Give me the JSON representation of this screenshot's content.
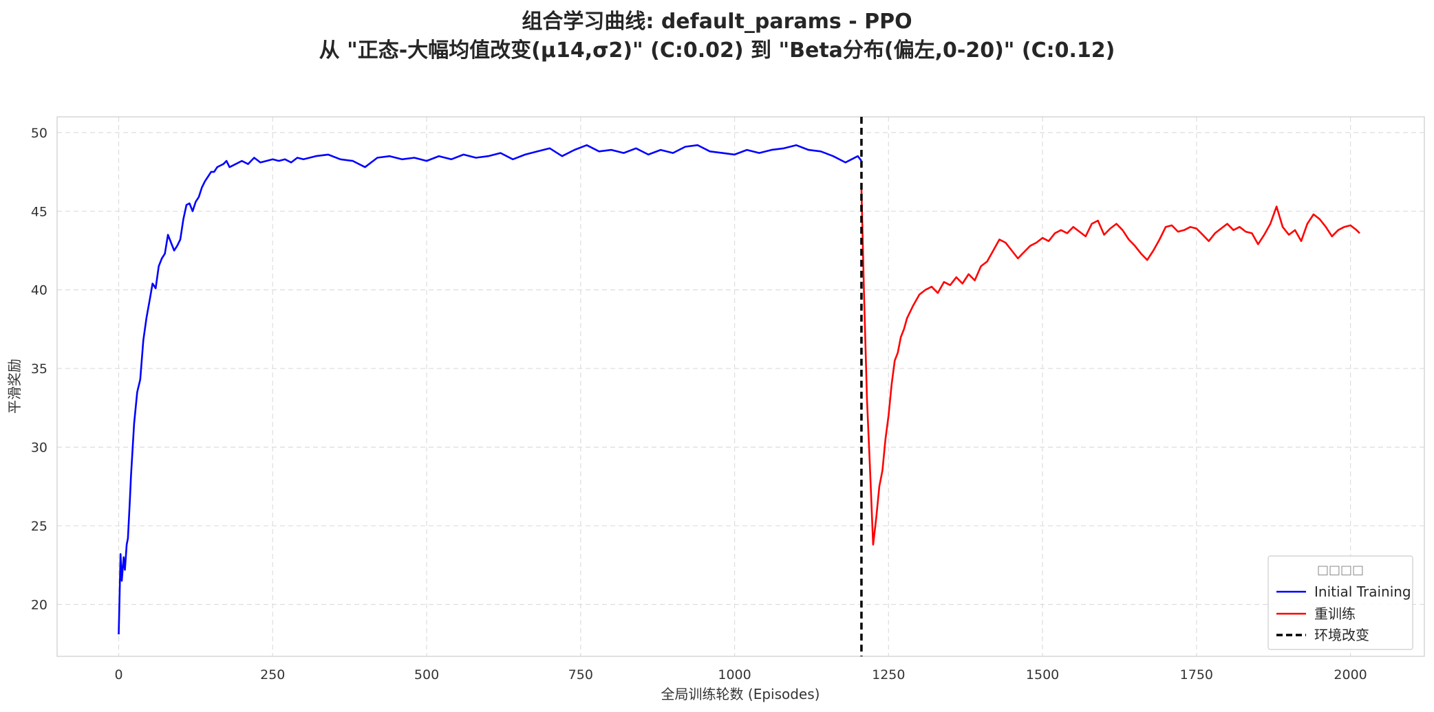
{
  "chart_data": {
    "type": "line",
    "title_line1": "组合学习曲线: default_params - PPO",
    "title_line2": "从 \"正态-大幅均值改变(μ14,σ2)\" (C:0.02) 到 \"Beta分布(偏左,0-20)\" (C:0.12)",
    "xlabel": "全局训练轮数 (Episodes)",
    "ylabel": "平滑奖励",
    "xlim": [
      -100,
      2120
    ],
    "ylim": [
      16.7,
      51.0
    ],
    "x_ticks": [
      0,
      250,
      500,
      750,
      1000,
      1250,
      1500,
      1750,
      2000
    ],
    "y_ticks": [
      20,
      25,
      30,
      35,
      40,
      45,
      50
    ],
    "grid": true,
    "legend": {
      "title": "□□□□",
      "placement": "bottom-right",
      "entries": [
        {
          "label": "Initial Training",
          "color": "#0000ff",
          "style": "solid"
        },
        {
          "label": "重训练",
          "color": "#ff0000",
          "style": "solid"
        },
        {
          "label": "环境改变",
          "color": "#000000",
          "style": "dashed"
        }
      ]
    },
    "vline": {
      "x": 1206,
      "color": "#000000",
      "style": "dashed"
    },
    "series": [
      {
        "name": "Initial Training",
        "color": "#0000ff",
        "x": [
          0,
          3,
          5,
          8,
          10,
          13,
          15,
          18,
          20,
          25,
          30,
          35,
          40,
          45,
          50,
          55,
          60,
          65,
          70,
          75,
          80,
          85,
          90,
          95,
          100,
          105,
          110,
          115,
          120,
          125,
          130,
          135,
          140,
          145,
          150,
          155,
          160,
          165,
          170,
          175,
          180,
          190,
          200,
          210,
          220,
          230,
          240,
          250,
          260,
          270,
          280,
          290,
          300,
          320,
          340,
          360,
          380,
          400,
          420,
          440,
          460,
          480,
          500,
          520,
          540,
          560,
          580,
          600,
          620,
          640,
          660,
          680,
          700,
          720,
          740,
          760,
          780,
          800,
          820,
          840,
          860,
          880,
          900,
          920,
          940,
          960,
          980,
          1000,
          1020,
          1040,
          1060,
          1080,
          1100,
          1120,
          1140,
          1160,
          1180,
          1190,
          1200,
          1206
        ],
        "y": [
          18.1,
          23.2,
          21.5,
          23.0,
          22.2,
          23.8,
          24.2,
          26.5,
          28.2,
          31.5,
          33.5,
          34.3,
          36.8,
          38.2,
          39.3,
          40.4,
          40.1,
          41.5,
          42.0,
          42.3,
          43.5,
          43.0,
          42.5,
          42.8,
          43.2,
          44.5,
          45.4,
          45.5,
          45.0,
          45.6,
          45.9,
          46.5,
          46.9,
          47.2,
          47.5,
          47.5,
          47.8,
          47.9,
          48.0,
          48.2,
          47.8,
          48.0,
          48.2,
          48.0,
          48.4,
          48.1,
          48.2,
          48.3,
          48.2,
          48.3,
          48.1,
          48.4,
          48.3,
          48.5,
          48.6,
          48.3,
          48.2,
          47.8,
          48.4,
          48.5,
          48.3,
          48.4,
          48.2,
          48.5,
          48.3,
          48.6,
          48.4,
          48.5,
          48.7,
          48.3,
          48.6,
          48.8,
          49.0,
          48.5,
          48.9,
          49.2,
          48.8,
          48.9,
          48.7,
          49.0,
          48.6,
          48.9,
          48.7,
          49.1,
          49.2,
          48.8,
          48.7,
          48.6,
          48.9,
          48.7,
          48.9,
          49.0,
          49.2,
          48.9,
          48.8,
          48.5,
          48.1,
          48.3,
          48.5,
          48.2
        ]
      },
      {
        "name": "重训练",
        "color": "#ff0000",
        "x": [
          1206,
          1210,
          1215,
          1220,
          1225,
          1230,
          1235,
          1240,
          1245,
          1250,
          1255,
          1260,
          1265,
          1270,
          1275,
          1280,
          1290,
          1300,
          1310,
          1320,
          1330,
          1340,
          1350,
          1360,
          1370,
          1380,
          1390,
          1400,
          1410,
          1420,
          1430,
          1440,
          1450,
          1460,
          1470,
          1480,
          1490,
          1500,
          1510,
          1520,
          1530,
          1540,
          1550,
          1560,
          1570,
          1580,
          1590,
          1600,
          1610,
          1620,
          1630,
          1640,
          1650,
          1660,
          1670,
          1680,
          1690,
          1700,
          1710,
          1720,
          1730,
          1740,
          1750,
          1760,
          1770,
          1780,
          1790,
          1800,
          1810,
          1820,
          1830,
          1840,
          1850,
          1860,
          1870,
          1880,
          1890,
          1900,
          1910,
          1920,
          1930,
          1940,
          1950,
          1960,
          1970,
          1980,
          1990,
          2000,
          2010,
          2015
        ],
        "y": [
          46.5,
          40.0,
          33.0,
          28.5,
          23.8,
          25.5,
          27.5,
          28.5,
          30.5,
          32.0,
          34.0,
          35.5,
          36.0,
          37.0,
          37.5,
          38.2,
          39.0,
          39.7,
          40.0,
          40.2,
          39.8,
          40.5,
          40.3,
          40.8,
          40.4,
          41.0,
          40.6,
          41.5,
          41.8,
          42.5,
          43.2,
          43.0,
          42.5,
          42.0,
          42.4,
          42.8,
          43.0,
          43.3,
          43.1,
          43.6,
          43.8,
          43.6,
          44.0,
          43.7,
          43.4,
          44.2,
          44.4,
          43.5,
          43.9,
          44.2,
          43.8,
          43.2,
          42.8,
          42.3,
          41.9,
          42.5,
          43.2,
          44.0,
          44.1,
          43.7,
          43.8,
          44.0,
          43.9,
          43.5,
          43.1,
          43.6,
          43.9,
          44.2,
          43.8,
          44.0,
          43.7,
          43.6,
          42.9,
          43.5,
          44.2,
          45.3,
          44.0,
          43.5,
          43.8,
          43.1,
          44.2,
          44.8,
          44.5,
          44.0,
          43.4,
          43.8,
          44.0,
          44.1,
          43.8,
          43.6
        ]
      }
    ]
  }
}
